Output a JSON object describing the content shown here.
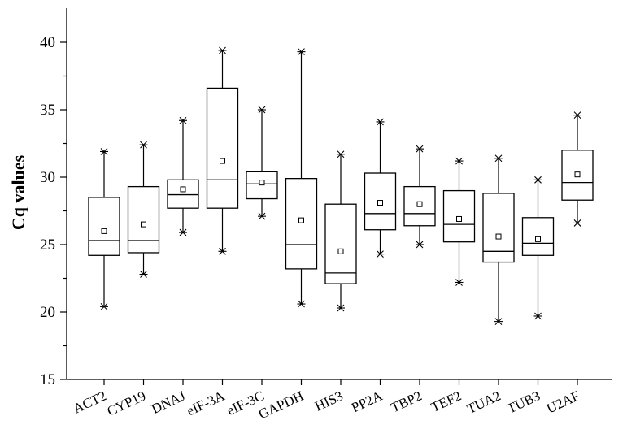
{
  "chart_data": {
    "type": "box",
    "ylabel": "Cq values",
    "xlabel": "",
    "ylim": [
      15,
      42
    ],
    "yticks": [
      15,
      20,
      25,
      30,
      35,
      40
    ],
    "grid": false,
    "categories": [
      "ACT2",
      "CYP19",
      "DNAJ",
      "eIF-3A",
      "eIF-3C",
      "GAPDH",
      "HIS3",
      "PP2A",
      "TBP2",
      "TEF2",
      "TUA2",
      "TUB3",
      "U2AF"
    ],
    "boxes": [
      {
        "min": 20.4,
        "q1": 24.2,
        "median": 25.3,
        "q3": 28.5,
        "max": 31.9,
        "mean": 26.0
      },
      {
        "min": 22.8,
        "q1": 24.4,
        "median": 25.3,
        "q3": 29.3,
        "max": 32.4,
        "mean": 26.5
      },
      {
        "min": 25.9,
        "q1": 27.7,
        "median": 28.7,
        "q3": 29.8,
        "max": 34.2,
        "mean": 29.1
      },
      {
        "min": 24.5,
        "q1": 27.7,
        "median": 29.8,
        "q3": 36.6,
        "max": 39.4,
        "mean": 31.2
      },
      {
        "min": 27.1,
        "q1": 28.4,
        "median": 29.5,
        "q3": 30.4,
        "max": 35.0,
        "mean": 29.6
      },
      {
        "min": 20.6,
        "q1": 23.2,
        "median": 25.0,
        "q3": 29.9,
        "max": 39.3,
        "mean": 26.8
      },
      {
        "min": 20.3,
        "q1": 22.1,
        "median": 22.9,
        "q3": 28.0,
        "max": 31.7,
        "mean": 24.5
      },
      {
        "min": 24.3,
        "q1": 26.1,
        "median": 27.3,
        "q3": 30.3,
        "max": 34.1,
        "mean": 28.1
      },
      {
        "min": 25.0,
        "q1": 26.4,
        "median": 27.3,
        "q3": 29.3,
        "max": 32.1,
        "mean": 28.0
      },
      {
        "min": 22.2,
        "q1": 25.2,
        "median": 26.5,
        "q3": 29.0,
        "max": 31.2,
        "mean": 26.9
      },
      {
        "min": 19.3,
        "q1": 23.7,
        "median": 24.5,
        "q3": 28.8,
        "max": 31.4,
        "mean": 25.6
      },
      {
        "min": 19.7,
        "q1": 24.2,
        "median": 25.1,
        "q3": 27.0,
        "max": 29.8,
        "mean": 25.4
      },
      {
        "min": 26.6,
        "q1": 28.3,
        "median": 29.6,
        "q3": 32.0,
        "max": 34.6,
        "mean": 30.2
      }
    ]
  }
}
